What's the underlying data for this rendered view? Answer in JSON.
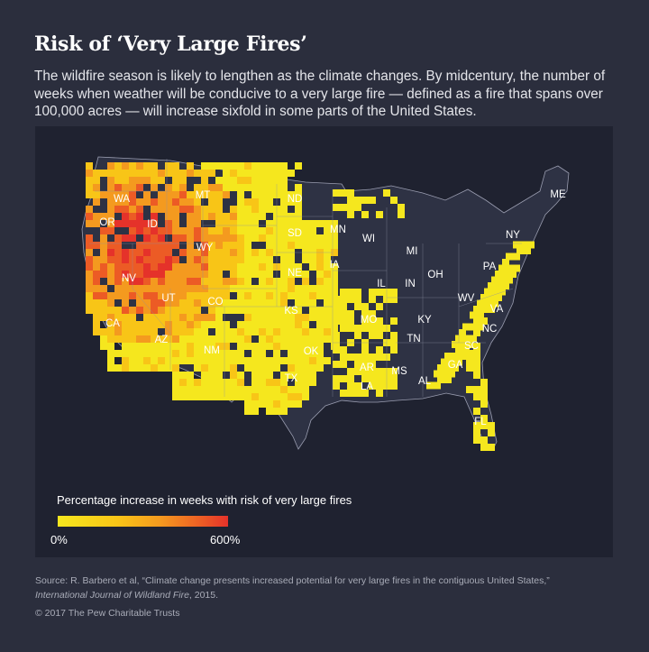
{
  "title": "Risk of ‘Very Large Fires’",
  "subtitle": "The wildfire season is likely to lengthen as the climate changes. By midcentury, the number of weeks when weather will be conducive to a very large fire — defined as a fire that spans over 100,000 acres — will increase sixfold in some parts of the United States.",
  "legend": {
    "title": "Percentage increase in weeks with risk of very large fires",
    "min_label": "0%",
    "max_label": "600%",
    "colors": [
      "#f5e71e",
      "#f8c517",
      "#f49a1f",
      "#ec5b25",
      "#e5322a"
    ]
  },
  "source": {
    "prefix": "Source: R. Barbero et al, “Climate change presents increased potential for very large fires in the contiguous United States,”",
    "journal": "International Journal of Wildland Fire",
    "suffix": ", 2015."
  },
  "copyright": "© 2017 The Pew Charitable Trusts",
  "states": [
    "WA",
    "OR",
    "ID",
    "MT",
    "ND",
    "SD",
    "WY",
    "NV",
    "CA",
    "UT",
    "CO",
    "NE",
    "KS",
    "AZ",
    "NM",
    "OK",
    "TX",
    "MN",
    "IA",
    "MO",
    "AR",
    "LA",
    "WI",
    "MI",
    "IL",
    "IN",
    "OH",
    "KY",
    "TN",
    "MS",
    "AL",
    "GA",
    "FL",
    "SC",
    "NC",
    "VA",
    "WV",
    "PA",
    "NY",
    "ME"
  ],
  "colors": {
    "background": "#2b2e3d",
    "map_panel": "#1f2230",
    "land": "#2e3244",
    "low_risk": "#f5e71e",
    "high_risk": "#e5322a"
  }
}
